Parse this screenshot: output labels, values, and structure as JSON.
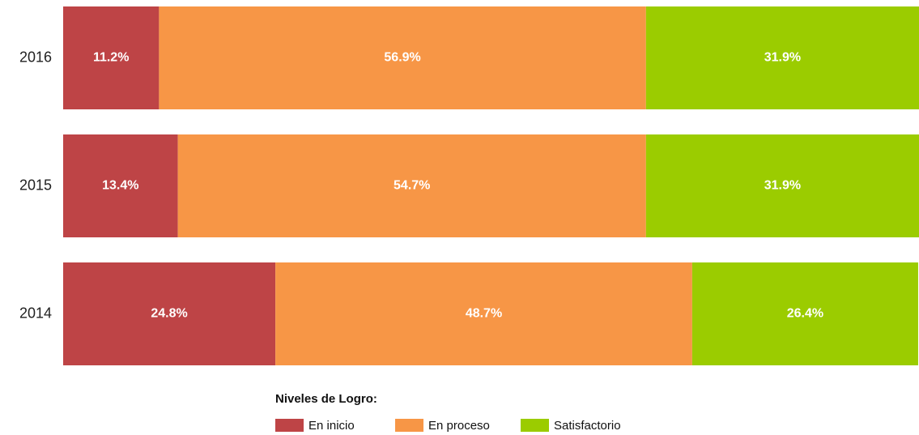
{
  "chart_data": {
    "type": "stacked_barh",
    "categories": [
      "2016",
      "2015",
      "2014"
    ],
    "series": [
      {
        "name": "En inicio",
        "color": "#be4446",
        "values": [
          11.2,
          13.4,
          24.8
        ],
        "value_labels": [
          "11.2%",
          "13.4%",
          "24.8%"
        ]
      },
      {
        "name": "En proceso",
        "color": "#f79646",
        "values": [
          56.9,
          54.7,
          48.7
        ],
        "value_labels": [
          "56.9%",
          "54.7%",
          "48.7%"
        ]
      },
      {
        "name": "Satisfactorio",
        "color": "#9bcc00",
        "values": [
          31.9,
          31.9,
          26.4
        ],
        "value_labels": [
          "31.9%",
          "31.9%",
          "26.4%"
        ]
      }
    ],
    "xlim": [
      0,
      100
    ],
    "legend_title": "Niveles de Logro:"
  }
}
